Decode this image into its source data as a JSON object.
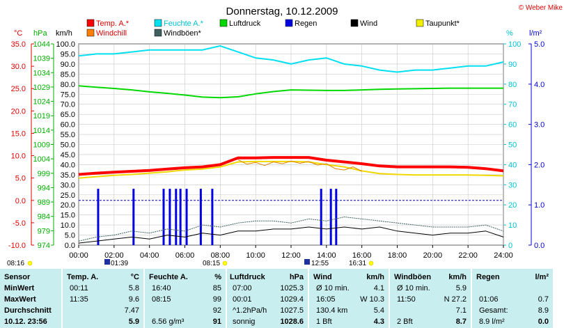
{
  "header": {
    "title": "Donnerstag, 10.12.2009",
    "credit": "© Weber Mike"
  },
  "legend": [
    {
      "label": "Temp. A.*",
      "color": "#ff0000"
    },
    {
      "label": "Feuchte A.*",
      "color": "#00e0f0"
    },
    {
      "label": "Luftdruck",
      "color": "#00d800"
    },
    {
      "label": "Regen",
      "color": "#0000e0"
    },
    {
      "label": "Wind",
      "color": "#000000"
    },
    {
      "label": "Taupunkt*",
      "color": "#f0f000"
    },
    {
      "label": "Windchill",
      "color": "#ff8000"
    },
    {
      "label": "Windböen*",
      "color": "#406060"
    }
  ],
  "axes": {
    "temp_unit": "°C",
    "press_unit": "hPa",
    "wind_unit": "km/h",
    "hum_unit": "%",
    "rain_unit": "l/m²",
    "temp_ticks": [
      "35.0",
      "30.0",
      "25.0",
      "20.0",
      "15.0",
      "10.0",
      "5.0",
      "0.0",
      "-5.0",
      "-10.0"
    ],
    "press_ticks": [
      "1044",
      "1039",
      "1034",
      "1029",
      "1024",
      "1019",
      "1014",
      "1009",
      "1004",
      "999",
      "994",
      "989",
      "984",
      "979",
      "974"
    ],
    "wind_ticks": [
      "100.0",
      "95.0",
      "90.0",
      "85.0",
      "80.0",
      "75.0",
      "70.0",
      "65.0",
      "60.0",
      "55.0",
      "50.0",
      "45.0",
      "40.0",
      "35.0",
      "30.0",
      "25.0",
      "20.0",
      "15.0",
      "10.0",
      "5.0",
      "0.0"
    ],
    "hum_ticks": [
      "100",
      "90",
      "80",
      "70",
      "60",
      "50",
      "40",
      "30",
      "20",
      "10",
      "0"
    ],
    "rain_ticks": [
      "5.0",
      "4.0",
      "3.0",
      "2.0",
      "1.0",
      "0.0"
    ],
    "time_ticks": [
      "00:00",
      "02:00",
      "04:00",
      "06:00",
      "08:00",
      "10:00",
      "12:00",
      "14:00",
      "16:00",
      "18:00",
      "20:00",
      "22:00",
      "24:00"
    ]
  },
  "markers": {
    "sunrise": "08:16",
    "moonset": "01:39",
    "sunup": "08:15",
    "noon": "12:55",
    "sunset": "16:31"
  },
  "chart_data": {
    "type": "line",
    "x_unit": "hours",
    "xlim": [
      0,
      24
    ],
    "series": [
      {
        "name": "Temp. A.*",
        "axis": "°C",
        "x": [
          0,
          1,
          2,
          3,
          4,
          5,
          6,
          7,
          8,
          9,
          10,
          11,
          12,
          13,
          14,
          15,
          16,
          17,
          18,
          19,
          20,
          21,
          22,
          23,
          24
        ],
        "values": [
          5.8,
          6.1,
          6.3,
          6.5,
          6.7,
          7.0,
          7.3,
          7.5,
          8.0,
          9.5,
          9.5,
          9.6,
          9.6,
          9.6,
          9.0,
          8.6,
          8.2,
          7.7,
          7.5,
          7.5,
          7.5,
          7.5,
          7.4,
          7.1,
          6.6
        ]
      },
      {
        "name": "Feuchte A.*",
        "axis": "%",
        "x": [
          0,
          1,
          2,
          3,
          4,
          5,
          6,
          7,
          8,
          9,
          10,
          11,
          12,
          13,
          14,
          15,
          16,
          17,
          18,
          19,
          20,
          21,
          22,
          23,
          24
        ],
        "values": [
          94,
          95,
          95,
          96,
          97,
          97,
          97,
          97,
          99,
          96,
          93,
          92,
          90,
          92,
          93,
          90,
          89,
          87,
          86,
          87,
          87,
          88,
          89,
          89,
          91
        ]
      },
      {
        "name": "Luftdruck",
        "axis": "hPa",
        "x": [
          0,
          1,
          2,
          3,
          4,
          5,
          6,
          7,
          8,
          9,
          10,
          11,
          12,
          13,
          14,
          15,
          16,
          17,
          18,
          19,
          20,
          21,
          22,
          23,
          24
        ],
        "values": [
          1029.4,
          1028.9,
          1028.5,
          1028.0,
          1027.3,
          1026.8,
          1026.2,
          1025.5,
          1025.3,
          1025.6,
          1026.6,
          1027.4,
          1028.0,
          1027.9,
          1027.8,
          1027.8,
          1028.0,
          1028.2,
          1028.3,
          1028.4,
          1028.5,
          1028.6,
          1028.6,
          1028.6,
          1028.6
        ]
      },
      {
        "name": "Taupunkt*",
        "axis": "°C",
        "x": [
          0,
          1,
          2,
          3,
          4,
          5,
          6,
          7,
          8,
          9,
          10,
          11,
          12,
          13,
          14,
          15,
          16,
          17,
          18,
          19,
          20,
          21,
          22,
          23,
          24
        ],
        "values": [
          5.0,
          5.3,
          5.6,
          5.8,
          6.1,
          6.4,
          6.8,
          7.0,
          7.5,
          8.6,
          8.7,
          8.7,
          8.7,
          8.6,
          8.0,
          7.5,
          6.6,
          6.0,
          5.8,
          5.7,
          5.7,
          5.7,
          5.7,
          5.6,
          5.5
        ]
      },
      {
        "name": "Windchill",
        "axis": "°C",
        "x": [
          9,
          9.5,
          10,
          10.5,
          11,
          11.5,
          12,
          12.5,
          13,
          13.5,
          14,
          14.5,
          15,
          15.5,
          16
        ],
        "values": [
          9.1,
          8.1,
          8.5,
          7.8,
          8.6,
          8.2,
          8.8,
          8.3,
          8.7,
          7.9,
          8.2,
          7.1,
          6.8,
          7.5,
          6.5
        ]
      },
      {
        "name": "Wind",
        "axis": "km/h",
        "x": [
          0,
          1,
          2,
          3,
          4,
          5,
          6,
          7,
          8,
          9,
          10,
          11,
          12,
          13,
          14,
          15,
          16,
          17,
          18,
          19,
          20,
          21,
          22,
          23,
          24
        ],
        "values": [
          1,
          2,
          3,
          4,
          3,
          5,
          4,
          6,
          5,
          7,
          7,
          8,
          8,
          9,
          8,
          9,
          8,
          9,
          7,
          6,
          5,
          6,
          6,
          7,
          4
        ]
      },
      {
        "name": "Windböen*",
        "axis": "km/h",
        "x": [
          0,
          1,
          2,
          3,
          4,
          5,
          6,
          7,
          8,
          9,
          10,
          11,
          12,
          13,
          14,
          15,
          16,
          17,
          18,
          19,
          20,
          21,
          22,
          23,
          24
        ],
        "values": [
          2,
          4,
          5,
          7,
          6,
          8,
          7,
          10,
          9,
          11,
          12,
          12,
          11,
          13,
          12,
          14,
          13,
          12,
          11,
          10,
          9,
          9,
          9,
          10,
          7
        ]
      },
      {
        "name": "Regen",
        "axis": "l/m²",
        "x": [
          1.1,
          3.1,
          4.8,
          5.15,
          5.5,
          5.75,
          6.1,
          6.9,
          7.55,
          13.7,
          14.25,
          14.55
        ],
        "values": [
          1.4,
          1.4,
          1.4,
          1.4,
          1.4,
          1.4,
          1.4,
          1.4,
          1.4,
          1.4,
          1.4,
          1.4
        ]
      }
    ]
  },
  "table": {
    "sensor": {
      "title": "Sensor",
      "rows": [
        "MinWert",
        "MaxWert",
        "Durchschnitt",
        "10.12.  23:56"
      ]
    },
    "temp": {
      "title": "Temp. A.",
      "unit": "°C",
      "rows": [
        [
          "00:11",
          "5.8"
        ],
        [
          "11:35",
          "9.6"
        ],
        [
          "",
          "7.47"
        ],
        [
          "",
          "5.9"
        ]
      ]
    },
    "hum": {
      "title": "Feuchte A.",
      "unit": "%",
      "rows": [
        [
          "16:40",
          "85"
        ],
        [
          "08:15",
          "99"
        ],
        [
          "",
          "92"
        ],
        [
          "6.56 g/m³",
          "91"
        ]
      ]
    },
    "press": {
      "title": "Luftdruck",
      "unit": "hPa",
      "rows": [
        [
          "07:00",
          "1025.3"
        ],
        [
          "00:01",
          "1029.4"
        ],
        [
          "^1.2hPa/h",
          "1027.5"
        ],
        [
          "sonnig",
          "1028.6"
        ]
      ]
    },
    "wind": {
      "title": "Wind",
      "unit": "km/h",
      "rows": [
        [
          "Ø 10 min.",
          "4.1"
        ],
        [
          "16:05",
          "W 10.3"
        ],
        [
          "130.4 km",
          "5.4"
        ],
        [
          "1 Bft",
          "4.3"
        ]
      ]
    },
    "gust": {
      "title": "Windböen",
      "unit": "km/h",
      "rows": [
        [
          "Ø 10 min.",
          "5.9"
        ],
        [
          "11:50",
          "N 27.2"
        ],
        [
          "",
          "7.1"
        ],
        [
          "2 Bft",
          "8.7"
        ]
      ]
    },
    "rain": {
      "title": "Regen",
      "unit": "l/m²",
      "rows": [
        [
          "",
          ""
        ],
        [
          "01:06",
          "0.7"
        ],
        [
          "Gesamt:",
          "8.9"
        ],
        [
          "8.9 l/m²",
          "0.0"
        ]
      ]
    }
  }
}
